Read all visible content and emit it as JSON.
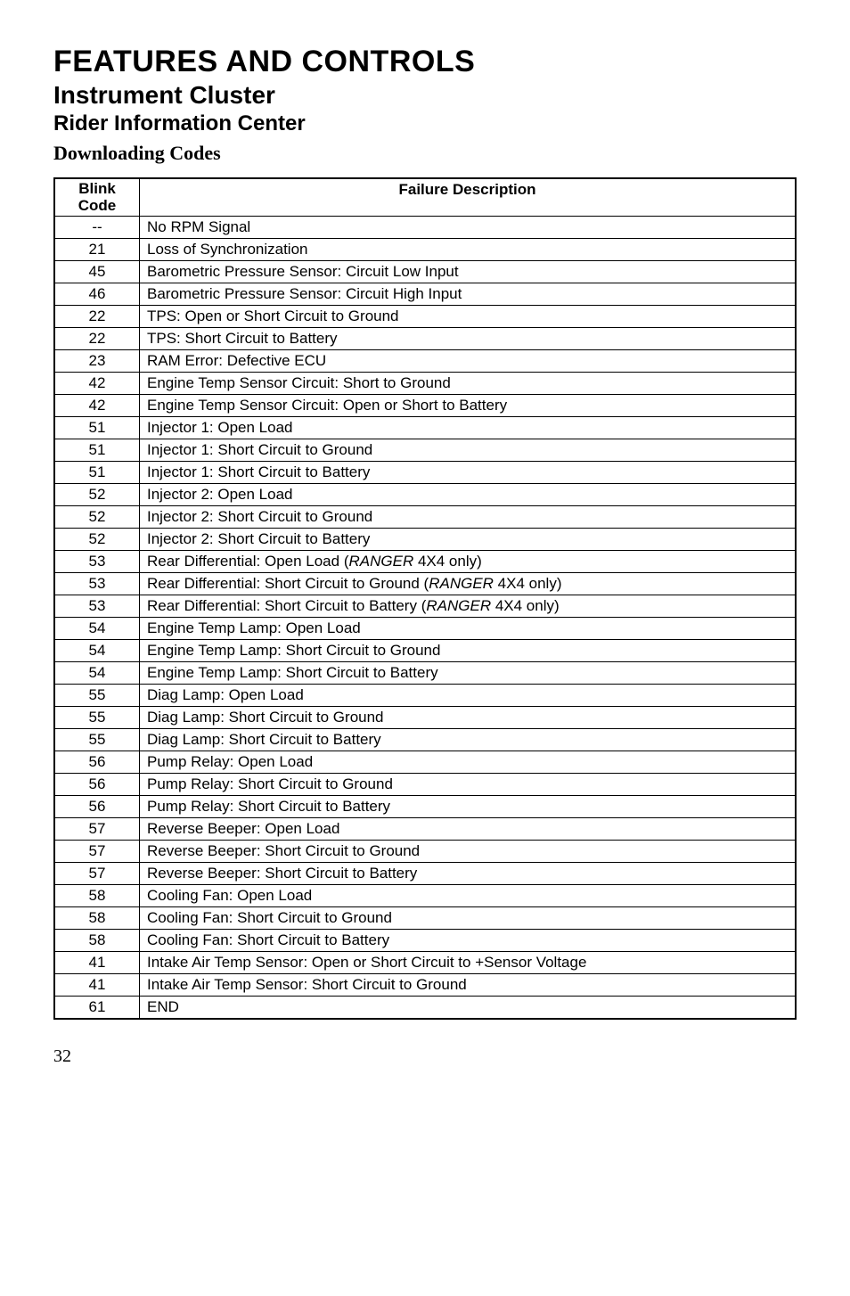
{
  "titles": {
    "main": "FEATURES AND CONTROLS",
    "sub": "Instrument Cluster",
    "section": "Rider Information Center",
    "downloading": "Downloading Codes"
  },
  "table": {
    "headers": {
      "code_line1": "Blink",
      "code_line2": "Code",
      "desc": "Failure Description"
    },
    "rows": [
      {
        "code": "--",
        "desc": "No RPM Signal"
      },
      {
        "code": "21",
        "desc": "Loss of Synchronization"
      },
      {
        "code": "45",
        "desc": "Barometric Pressure Sensor: Circuit Low Input"
      },
      {
        "code": "46",
        "desc": "Barometric Pressure Sensor: Circuit High Input"
      },
      {
        "code": "22",
        "desc": "TPS: Open or Short Circuit to Ground"
      },
      {
        "code": "22",
        "desc": "TPS: Short Circuit to Battery"
      },
      {
        "code": "23",
        "desc": "RAM Error: Defective ECU"
      },
      {
        "code": "42",
        "desc": "Engine Temp Sensor Circuit: Short to Ground"
      },
      {
        "code": "42",
        "desc": "Engine Temp Sensor Circuit: Open or Short to Battery"
      },
      {
        "code": "51",
        "desc": "Injector 1: Open Load"
      },
      {
        "code": "51",
        "desc": "Injector 1: Short Circuit to Ground"
      },
      {
        "code": "51",
        "desc": "Injector 1: Short Circuit to Battery"
      },
      {
        "code": "52",
        "desc": "Injector 2: Open Load"
      },
      {
        "code": "52",
        "desc": "Injector 2: Short Circuit to Ground"
      },
      {
        "code": "52",
        "desc": "Injector 2: Short Circuit to Battery"
      },
      {
        "code": "53",
        "desc_parts": [
          "Rear Differential: Open Load (",
          {
            "italic": "RANGER"
          },
          " 4X4 only)"
        ]
      },
      {
        "code": "53",
        "desc_parts": [
          "Rear Differential: Short Circuit to Ground (",
          {
            "italic": "RANGER"
          },
          " 4X4 only)"
        ]
      },
      {
        "code": "53",
        "desc_parts": [
          "Rear Differential: Short Circuit to Battery (",
          {
            "italic": "RANGER"
          },
          " 4X4 only)"
        ]
      },
      {
        "code": "54",
        "desc": "Engine Temp Lamp: Open Load"
      },
      {
        "code": "54",
        "desc": "Engine Temp Lamp: Short Circuit to Ground"
      },
      {
        "code": "54",
        "desc": "Engine Temp Lamp: Short Circuit to Battery"
      },
      {
        "code": "55",
        "desc": "Diag Lamp: Open Load"
      },
      {
        "code": "55",
        "desc": "Diag Lamp: Short Circuit to Ground"
      },
      {
        "code": "55",
        "desc": "Diag Lamp: Short Circuit to Battery"
      },
      {
        "code": "56",
        "desc": "Pump Relay: Open Load"
      },
      {
        "code": "56",
        "desc": "Pump Relay: Short Circuit to Ground"
      },
      {
        "code": "56",
        "desc": "Pump Relay: Short Circuit to Battery"
      },
      {
        "code": "57",
        "desc": "Reverse Beeper: Open Load"
      },
      {
        "code": "57",
        "desc": "Reverse Beeper: Short Circuit to Ground"
      },
      {
        "code": "57",
        "desc": "Reverse Beeper: Short Circuit to Battery"
      },
      {
        "code": "58",
        "desc": "Cooling Fan: Open Load"
      },
      {
        "code": "58",
        "desc": "Cooling Fan: Short Circuit to Ground"
      },
      {
        "code": "58",
        "desc": "Cooling Fan: Short Circuit to Battery"
      },
      {
        "code": "41",
        "desc": "Intake Air Temp Sensor: Open or Short Circuit to +Sensor Voltage"
      },
      {
        "code": "41",
        "desc": "Intake Air Temp Sensor: Short Circuit to Ground"
      },
      {
        "code": "61",
        "desc": "END"
      }
    ]
  },
  "page_number": "32"
}
